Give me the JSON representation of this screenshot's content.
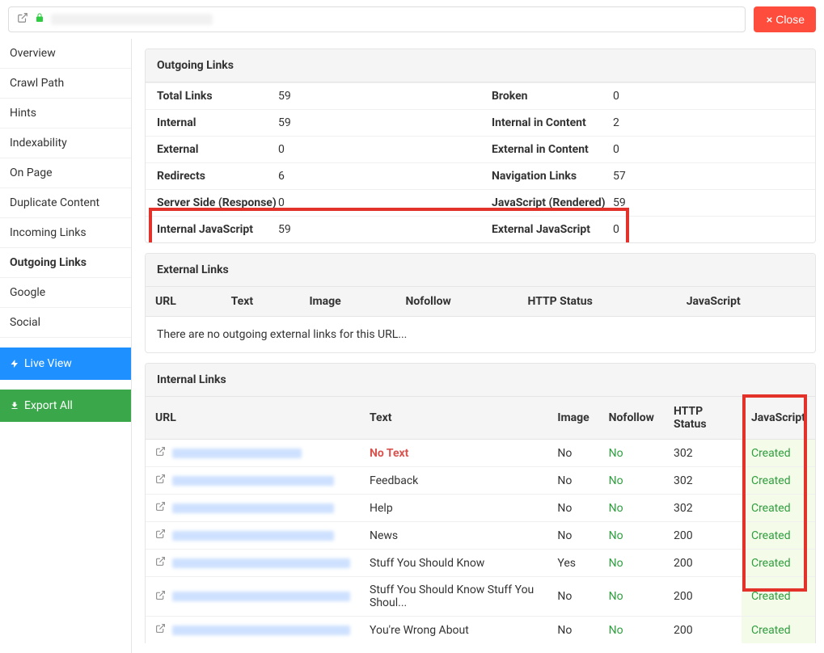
{
  "topbar": {
    "close_label": "Close"
  },
  "sidebar": {
    "items": [
      {
        "label": "Overview"
      },
      {
        "label": "Crawl Path"
      },
      {
        "label": "Hints"
      },
      {
        "label": "Indexability"
      },
      {
        "label": "On Page"
      },
      {
        "label": "Duplicate Content"
      },
      {
        "label": "Incoming Links"
      },
      {
        "label": "Outgoing Links",
        "active": true
      },
      {
        "label": "Google"
      },
      {
        "label": "Social"
      }
    ],
    "live_view": "Live View",
    "export_all": "Export All"
  },
  "outgoing_panel": {
    "title": "Outgoing Links",
    "rows": [
      [
        {
          "label": "Total Links",
          "value": "59"
        },
        {
          "label": "Broken",
          "value": "0"
        }
      ],
      [
        {
          "label": "Internal",
          "value": "59"
        },
        {
          "label": "Internal in Content",
          "value": "2"
        }
      ],
      [
        {
          "label": "External",
          "value": "0"
        },
        {
          "label": "External in Content",
          "value": "0"
        }
      ],
      [
        {
          "label": "Redirects",
          "value": "6"
        },
        {
          "label": "Navigation Links",
          "value": "57"
        }
      ],
      [
        {
          "label": "Server Side (Response)",
          "value": "0"
        },
        {
          "label": "JavaScript (Rendered)",
          "value": "59"
        }
      ],
      [
        {
          "label": "Internal JavaScript",
          "value": "59"
        },
        {
          "label": "External JavaScript",
          "value": "0"
        }
      ]
    ],
    "highlight_box_css": "left:4px; top:155px; width:594px; height:58px;"
  },
  "external_panel": {
    "title": "External Links",
    "columns": [
      "URL",
      "Text",
      "Image",
      "Nofollow",
      "HTTP Status",
      "JavaScript"
    ],
    "empty": "There are no outgoing external links for this URL..."
  },
  "internal_panel": {
    "title": "Internal Links",
    "columns": [
      "URL",
      "Text",
      "Image",
      "Nofollow",
      "HTTP Status",
      "JavaScript"
    ],
    "highlight_box_css": "left:738px; top:-3px; width:80px; height:244px;",
    "rows": [
      {
        "url_width": 160,
        "text": "No Text",
        "no_text": true,
        "image": "No",
        "nofollow": "No",
        "status": "302",
        "js": "Created"
      },
      {
        "url_width": 200,
        "text": "Feedback",
        "image": "No",
        "nofollow": "No",
        "status": "302",
        "js": "Created"
      },
      {
        "url_width": 200,
        "text": "Help",
        "image": "No",
        "nofollow": "No",
        "status": "302",
        "js": "Created"
      },
      {
        "url_width": 200,
        "text": "News",
        "image": "No",
        "nofollow": "No",
        "status": "200",
        "js": "Created"
      },
      {
        "url_width": 220,
        "text": "Stuff You Should Know",
        "image": "Yes",
        "nofollow": "No",
        "status": "200",
        "js": "Created"
      },
      {
        "url_width": 220,
        "text": "Stuff You Should Know Stuff You Shoul...",
        "image": "No",
        "nofollow": "No",
        "status": "200",
        "js": "Created"
      },
      {
        "url_width": 220,
        "text": "You're Wrong About",
        "image": "No",
        "nofollow": "No",
        "status": "200",
        "js": "Created"
      }
    ]
  },
  "colors": {
    "close_btn": "#ff4d3d",
    "live_btn": "#1e90ff",
    "export_btn": "#3aa84a",
    "highlight_red": "#e3322a",
    "green": "#2e9e3e",
    "no_text_red": "#d9534f",
    "js_cell_bg": "#f4fbe8",
    "link_blur": "#b8d4ff"
  }
}
